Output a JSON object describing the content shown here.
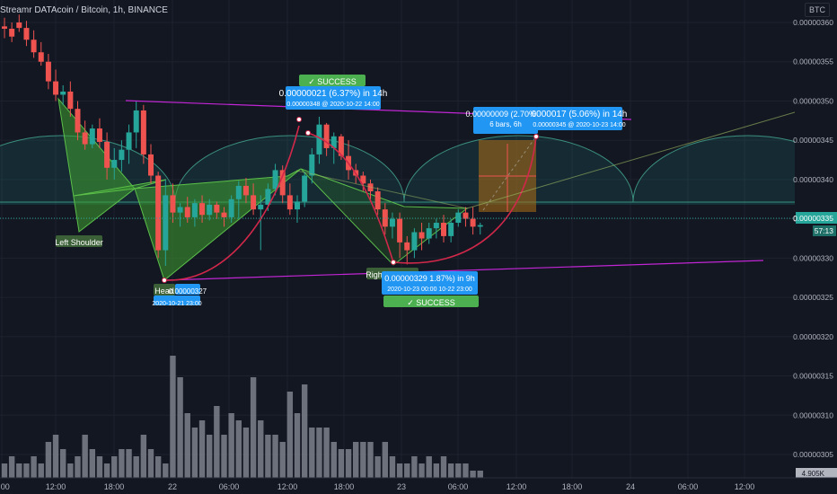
{
  "header": {
    "symbol_line": "Streamr DATAcoin / Bitcoin, 1h, BINANCE",
    "currency_badge": "BTC"
  },
  "chart_data": {
    "type": "candlestick",
    "price_axis": {
      "ticks": [
        "0.00000360",
        "0.00000355",
        "0.00000350",
        "0.00000345",
        "0.00000340",
        "0.00000335",
        "0.00000330",
        "0.00000325",
        "0.00000320",
        "0.00000315",
        "0.00000310",
        "0.00000305"
      ],
      "last_price": "0.00000335",
      "countdown": "57:13",
      "bottom_partial": "4.905K"
    },
    "time_axis": {
      "ticks": [
        "6:00",
        "12:00",
        "18:00",
        "22",
        "06:00",
        "12:00",
        "18:00",
        "23",
        "06:00",
        "12:00",
        "18:00",
        "24",
        "06:00",
        "12:00"
      ]
    },
    "candles": [
      [
        3.595e-06,
        3.606e-06,
        3.58e-06,
        3.592e-06
      ],
      [
        3.592e-06,
        3.6e-06,
        3.575e-06,
        3.582e-06
      ],
      [
        3.6e-06,
        3.61e-06,
        3.588e-06,
        3.593e-06
      ],
      [
        3.593e-06,
        3.602e-06,
        3.57e-06,
        3.578e-06
      ],
      [
        3.578e-06,
        3.59e-06,
        3.555e-06,
        3.562e-06
      ],
      [
        3.562e-06,
        3.575e-06,
        3.545e-06,
        3.55e-06
      ],
      [
        3.55e-06,
        3.56e-06,
        3.515e-06,
        3.525e-06
      ],
      [
        3.525e-06,
        3.54e-06,
        3.5e-06,
        3.508e-06
      ],
      [
        3.508e-06,
        3.52e-06,
        3.495e-06,
        3.512e-06
      ],
      [
        3.512e-06,
        3.525e-06,
        3.48e-06,
        3.49e-06
      ],
      [
        3.49e-06,
        3.5e-06,
        3.45e-06,
        3.46e-06
      ],
      [
        3.46e-06,
        3.475e-06,
        3.438e-06,
        3.445e-06
      ],
      [
        3.445e-06,
        3.47e-06,
        3.44e-06,
        3.465e-06
      ],
      [
        3.465e-06,
        3.478e-06,
        3.44e-06,
        3.448e-06
      ],
      [
        3.448e-06,
        3.46e-06,
        3.4e-06,
        3.415e-06
      ],
      [
        3.415e-06,
        3.44e-06,
        3.4e-06,
        3.425e-06
      ],
      [
        3.425e-06,
        3.45e-06,
        3.41e-06,
        3.438e-06
      ],
      [
        3.438e-06,
        3.47e-06,
        3.42e-06,
        3.46e-06
      ],
      [
        3.46e-06,
        3.5e-06,
        3.44e-06,
        3.488e-06
      ],
      [
        3.488e-06,
        3.495e-06,
        3.42e-06,
        3.432e-06
      ],
      [
        3.432e-06,
        3.445e-06,
        3.395e-06,
        3.405e-06
      ],
      [
        3.405e-06,
        3.41e-06,
        3.3e-06,
        3.31e-06
      ],
      [
        3.31e-06,
        3.4e-06,
        3.29e-06,
        3.38e-06
      ],
      [
        3.38e-06,
        3.395e-06,
        3.345e-06,
        3.358e-06
      ],
      [
        3.358e-06,
        3.37e-06,
        3.34e-06,
        3.365e-06
      ],
      [
        3.365e-06,
        3.378e-06,
        3.345e-06,
        3.352e-06
      ],
      [
        3.352e-06,
        3.375e-06,
        3.34e-06,
        3.37e-06
      ],
      [
        3.37e-06,
        3.38e-06,
        3.345e-06,
        3.355e-06
      ],
      [
        3.355e-06,
        3.375e-06,
        3.348e-06,
        3.368e-06
      ],
      [
        3.368e-06,
        3.372e-06,
        3.35e-06,
        3.358e-06
      ],
      [
        3.358e-06,
        3.365e-06,
        3.34e-06,
        3.352e-06
      ],
      [
        3.352e-06,
        3.38e-06,
        3.345e-06,
        3.375e-06
      ],
      [
        3.375e-06,
        3.398e-06,
        3.35e-06,
        3.392e-06
      ],
      [
        3.392e-06,
        3.402e-06,
        3.37e-06,
        3.38e-06
      ],
      [
        3.38e-06,
        3.395e-06,
        3.355e-06,
        3.362e-06
      ],
      [
        3.362e-06,
        3.38e-06,
        3.31e-06,
        3.368e-06
      ],
      [
        3.368e-06,
        3.395e-06,
        3.36e-06,
        3.388e-06
      ],
      [
        3.388e-06,
        3.42e-06,
        3.38e-06,
        3.412e-06
      ],
      [
        3.412e-06,
        3.418e-06,
        3.37e-06,
        3.38e-06
      ],
      [
        3.38e-06,
        3.395e-06,
        3.355e-06,
        3.362e-06
      ],
      [
        3.362e-06,
        3.38e-06,
        3.345e-06,
        3.372e-06
      ],
      [
        3.372e-06,
        3.41e-06,
        3.365e-06,
        3.405e-06
      ],
      [
        3.405e-06,
        3.44e-06,
        3.395e-06,
        3.432e-06
      ],
      [
        3.432e-06,
        3.48e-06,
        3.42e-06,
        3.47e-06
      ],
      [
        3.47e-06,
        3.472e-06,
        3.43e-06,
        3.44e-06
      ],
      [
        3.44e-06,
        3.46e-06,
        3.42e-06,
        3.455e-06
      ],
      [
        3.455e-06,
        3.458e-06,
        3.425e-06,
        3.43e-06
      ],
      [
        3.43e-06,
        3.45e-06,
        3.4e-06,
        3.412e-06
      ],
      [
        3.412e-06,
        3.42e-06,
        3.395e-06,
        3.405e-06
      ],
      [
        3.405e-06,
        3.41e-06,
        3.385e-06,
        3.395e-06
      ],
      [
        3.395e-06,
        3.4e-06,
        3.375e-06,
        3.385e-06
      ],
      [
        3.385e-06,
        3.39e-06,
        3.355e-06,
        3.362e-06
      ],
      [
        3.362e-06,
        3.37e-06,
        3.33e-06,
        3.34e-06
      ],
      [
        3.34e-06,
        3.358e-06,
        3.325e-06,
        3.35e-06
      ],
      [
        3.35e-06,
        3.358e-06,
        3.3e-06,
        3.32e-06
      ],
      [
        3.32e-06,
        3.328e-06,
        3.292e-06,
        3.31e-06
      ],
      [
        3.31e-06,
        3.338e-06,
        3.3e-06,
        3.333e-06
      ],
      [
        3.333e-06,
        3.345e-06,
        3.31e-06,
        3.325e-06
      ],
      [
        3.325e-06,
        3.345e-06,
        3.318e-06,
        3.338e-06
      ],
      [
        3.338e-06,
        3.35e-06,
        3.325e-06,
        3.345e-06
      ],
      [
        3.345e-06,
        3.355e-06,
        3.32e-06,
        3.328e-06
      ],
      [
        3.328e-06,
        3.35e-06,
        3.32e-06,
        3.345e-06
      ],
      [
        3.345e-06,
        3.362e-06,
        3.34e-06,
        3.358e-06
      ],
      [
        3.358e-06,
        3.365e-06,
        3.34e-06,
        3.35e-06
      ],
      [
        3.35e-06,
        3.365e-06,
        3.33e-06,
        3.34e-06
      ],
      [
        3.34e-06,
        3.345e-06,
        3.33e-06,
        3.342e-06
      ]
    ],
    "volume": [
      2,
      3,
      2,
      2,
      3,
      2,
      5,
      6,
      4,
      2,
      3,
      6,
      4,
      3,
      2,
      3,
      4,
      4,
      3,
      6,
      4,
      3,
      2,
      17,
      14,
      9,
      7,
      8,
      6,
      10,
      6,
      9,
      8,
      7,
      14,
      8,
      6,
      6,
      5,
      12,
      9,
      13,
      7,
      7,
      7,
      5,
      4,
      4,
      5,
      5,
      5,
      3,
      5,
      3,
      2,
      2,
      3,
      2,
      3,
      2,
      3,
      2,
      2,
      2,
      1,
      1
    ],
    "volume_axis_label": "4.905K",
    "patterns": {
      "labels": [
        "Left Shoulder",
        "Head",
        "Right Shoulder"
      ],
      "head_price": "0.00000327",
      "head_time": "2020-10-21 23:00",
      "success_label": "SUCCESS"
    },
    "callouts": [
      {
        "line1": "0.00000021 (6.37%) in 14h",
        "line2": "0.00000348 @ 2020-10-22 14:00"
      },
      {
        "line1": "1.87%) in 9h",
        "line2": "0.00000329",
        "line3": "2020-10-23 00:00",
        "line4": "10-22 23:00"
      },
      {
        "line1": "0.00000009 (2.70%) 9",
        "line2": "6 bars, 6h"
      },
      {
        "line1": "0000017 (5.06%) in 14h",
        "line2": "0.00000345 @ 2020-10-23 14:00"
      }
    ],
    "colors": {
      "bg": "#131722",
      "up": "#26a69a",
      "down": "#ef5350",
      "grid": "#1e222d",
      "volume": "#787b86",
      "pattern_fill": "#3fa12f",
      "trendline": "#c026d3",
      "arc": "#d1284a",
      "success": "#4caf50",
      "callout": "#2196f3",
      "target_box": "#8a5a12"
    }
  }
}
